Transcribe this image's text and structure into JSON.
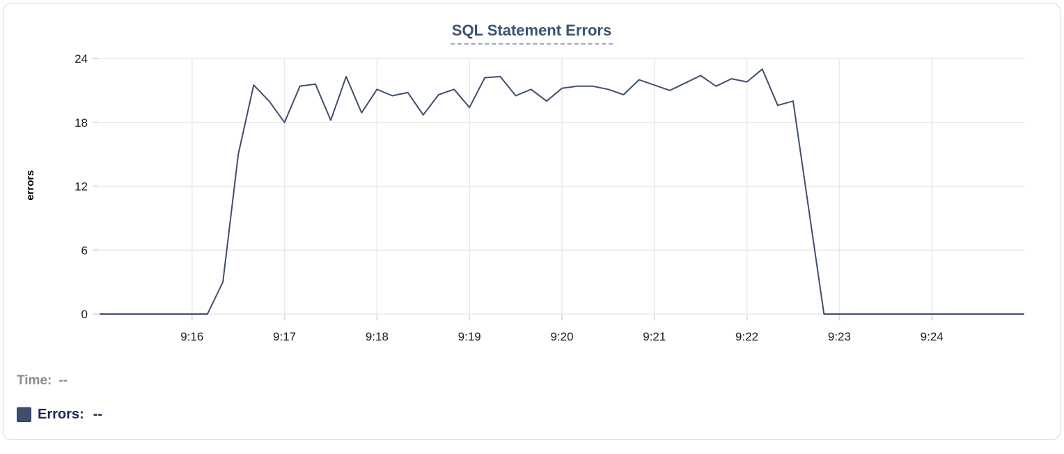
{
  "chart": {
    "title": "SQL Statement Errors"
  },
  "legend": {
    "time_label": "Time:",
    "time_value": "--",
    "errors_label": "Errors:",
    "errors_value": "--"
  },
  "colors": {
    "series": "#3f4e6e",
    "title": "#3c5273",
    "grid": "#e9e9e9",
    "tick": "#dedede",
    "tick_text": "#1b1b1b"
  },
  "chart_data": {
    "type": "line",
    "title": "SQL Statement Errors",
    "xlabel": "",
    "ylabel": "errors",
    "ylim": [
      0,
      24
    ],
    "yticks": [
      0,
      6,
      12,
      18,
      24
    ],
    "xticks": [
      "9:16",
      "9:17",
      "9:18",
      "9:19",
      "9:20",
      "9:21",
      "9:22",
      "9:23",
      "9:24"
    ],
    "grid": true,
    "legend_position": "bottom-left",
    "interval_seconds": 10,
    "series": [
      {
        "name": "Errors",
        "x": [
          "9:15:00",
          "9:15:10",
          "9:15:20",
          "9:15:30",
          "9:15:40",
          "9:15:50",
          "9:16:00",
          "9:16:10",
          "9:16:20",
          "9:16:30",
          "9:16:40",
          "9:16:50",
          "9:17:00",
          "9:17:10",
          "9:17:20",
          "9:17:30",
          "9:17:40",
          "9:17:50",
          "9:18:00",
          "9:18:10",
          "9:18:20",
          "9:18:30",
          "9:18:40",
          "9:18:50",
          "9:19:00",
          "9:19:10",
          "9:19:20",
          "9:19:30",
          "9:19:40",
          "9:19:50",
          "9:20:00",
          "9:20:10",
          "9:20:20",
          "9:20:30",
          "9:20:40",
          "9:20:50",
          "9:21:00",
          "9:21:10",
          "9:21:20",
          "9:21:30",
          "9:21:40",
          "9:21:50",
          "9:22:00",
          "9:22:10",
          "9:22:20",
          "9:22:30",
          "9:22:40",
          "9:22:50",
          "9:23:00",
          "9:23:10",
          "9:23:20",
          "9:23:30",
          "9:23:40",
          "9:23:50",
          "9:24:00",
          "9:24:10",
          "9:24:20",
          "9:24:30",
          "9:24:40",
          "9:24:50",
          "9:25:00"
        ],
        "values": [
          0,
          0,
          0,
          0,
          0,
          0,
          0,
          0,
          3,
          15,
          21.5,
          20,
          18,
          21.4,
          21.6,
          18.2,
          22.3,
          18.9,
          21.1,
          20.5,
          20.8,
          18.7,
          20.6,
          21.1,
          19.4,
          22.2,
          22.3,
          20.5,
          21.1,
          20,
          21.2,
          21.4,
          21.4,
          21.1,
          20.6,
          22,
          21.5,
          21,
          21.7,
          22.4,
          21.4,
          22.1,
          21.8,
          23,
          19.6,
          20,
          10,
          0,
          0,
          0,
          0,
          0,
          0,
          0,
          0,
          0,
          0,
          0,
          0,
          0,
          0
        ]
      }
    ]
  }
}
